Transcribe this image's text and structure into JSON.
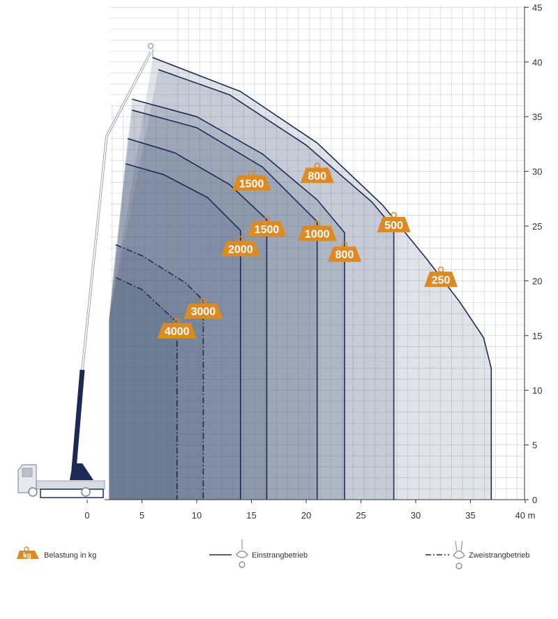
{
  "chart_data": {
    "type": "line",
    "x_unit": "m",
    "xlim": [
      0,
      40
    ],
    "ylim": [
      0,
      45
    ],
    "x_ticks": [
      0,
      5,
      10,
      15,
      20,
      25,
      30,
      35,
      40
    ],
    "y_ticks": [
      0,
      5,
      10,
      15,
      20,
      25,
      30,
      35,
      40,
      45
    ],
    "grid": true,
    "colors": {
      "curve": "#1d2a55",
      "badge": "#dc8a24",
      "grid": "#c9cdd6",
      "crane": "#1d2a55",
      "truck": "#d8dce2"
    },
    "curves": [
      {
        "load": 4000,
        "mode": "double",
        "points": [
          [
            2.6,
            20.3
          ],
          [
            5,
            19.2
          ],
          [
            8,
            16.4
          ],
          [
            8.2,
            16.0
          ],
          [
            8.2,
            0
          ]
        ]
      },
      {
        "load": 3000,
        "mode": "double",
        "points": [
          [
            2.6,
            23.3
          ],
          [
            5,
            22.3
          ],
          [
            9,
            19.8
          ],
          [
            10.6,
            18.2
          ],
          [
            10.6,
            0
          ]
        ]
      },
      {
        "load": 2000,
        "mode": "single",
        "points": [
          [
            3.5,
            30.7
          ],
          [
            7,
            29.7
          ],
          [
            11,
            27.6
          ],
          [
            14.0,
            24.6
          ],
          [
            14.0,
            0
          ]
        ]
      },
      {
        "load": 1500,
        "mode": "single",
        "points": [
          [
            3.7,
            33.0
          ],
          [
            8,
            31.7
          ],
          [
            13,
            28.8
          ],
          [
            16.4,
            25.6
          ],
          [
            16.4,
            0
          ]
        ]
      },
      {
        "load": 1000,
        "mode": "single",
        "points": [
          [
            4.1,
            35.6
          ],
          [
            10,
            34.0
          ],
          [
            16,
            30.4
          ],
          [
            21.0,
            25.4
          ],
          [
            21.0,
            0
          ]
        ]
      },
      {
        "load": 800,
        "mode": "single",
        "points": [
          [
            4.1,
            36.6
          ],
          [
            10,
            35.0
          ],
          [
            16,
            31.6
          ],
          [
            21,
            27.4
          ],
          [
            23.5,
            24.4
          ],
          [
            23.5,
            0
          ]
        ]
      },
      {
        "load": 500,
        "mode": "single",
        "points": [
          [
            6.5,
            39.3
          ],
          [
            13,
            37.0
          ],
          [
            20,
            32.4
          ],
          [
            26,
            27.2
          ],
          [
            28.0,
            24.8
          ],
          [
            28.0,
            0
          ]
        ]
      },
      {
        "load": 250,
        "mode": "single",
        "points": [
          [
            6.0,
            40.4
          ],
          [
            14,
            37.3
          ],
          [
            21,
            32.6
          ],
          [
            27,
            26.9
          ],
          [
            31,
            22.0
          ],
          [
            34,
            18.1
          ],
          [
            36.2,
            14.8
          ],
          [
            36.9,
            12.0
          ],
          [
            36.9,
            0
          ]
        ]
      }
    ],
    "badges": [
      {
        "label": "4000",
        "x": 8.2,
        "y": 15.5
      },
      {
        "label": "3000",
        "x": 10.6,
        "y": 17.3
      },
      {
        "label": "2000",
        "x": 14.0,
        "y": 23.0
      },
      {
        "label": "1500",
        "x": 16.4,
        "y": 24.8
      },
      {
        "label": "1500",
        "x": 15.0,
        "y": 29.0
      },
      {
        "label": "800",
        "x": 21.0,
        "y": 29.7
      },
      {
        "label": "1000",
        "x": 21.0,
        "y": 24.4
      },
      {
        "label": "800",
        "x": 23.5,
        "y": 22.5
      },
      {
        "label": "500",
        "x": 28.0,
        "y": 25.2
      },
      {
        "label": "250",
        "x": 32.3,
        "y": 20.2
      }
    ]
  },
  "legend": {
    "load_badge": "kg",
    "load_text": "Belastung in kg",
    "single_text": "Einstrangbetrieb",
    "double_text": "Zweistrangbetrieb"
  }
}
